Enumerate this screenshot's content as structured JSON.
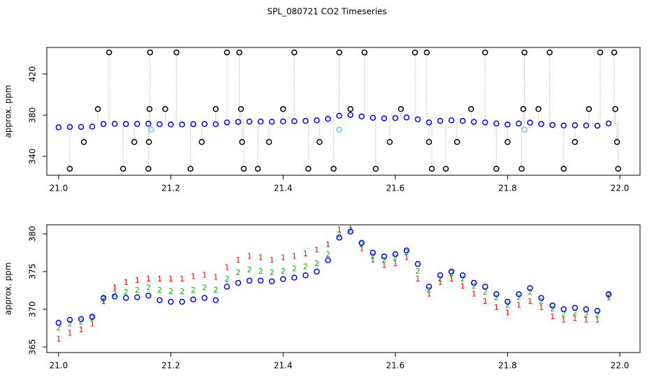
{
  "title": "SPL_080721  CO2 Timeseries",
  "chart_data": [
    {
      "type": "scatter",
      "ylabel": "approx. ppm",
      "xlim": [
        20.979,
        22.036
      ],
      "ylim": [
        321.7,
        445.8
      ],
      "xticks": [
        {
          "value": 21.0,
          "label": "21.0"
        },
        {
          "value": 21.2,
          "label": "21.2"
        },
        {
          "value": 21.4,
          "label": "21.4"
        },
        {
          "value": 21.6,
          "label": "21.6"
        },
        {
          "value": 21.8,
          "label": "21.8"
        },
        {
          "value": 22.0,
          "label": "22.0"
        }
      ],
      "yticks": [
        340,
        380,
        420
      ],
      "x": [
        21.0,
        21.02,
        21.04,
        21.06,
        21.08,
        21.1,
        21.12,
        21.14,
        21.16,
        21.18,
        21.2,
        21.22,
        21.24,
        21.26,
        21.28,
        21.3,
        21.32,
        21.34,
        21.36,
        21.38,
        21.4,
        21.42,
        21.44,
        21.46,
        21.48,
        21.5,
        21.52,
        21.54,
        21.56,
        21.58,
        21.6,
        21.62,
        21.64,
        21.66,
        21.68,
        21.7,
        21.72,
        21.74,
        21.76,
        21.78,
        21.8,
        21.82,
        21.84,
        21.86,
        21.88,
        21.9,
        21.92,
        21.94,
        21.96,
        21.98
      ],
      "series": [
        {
          "color": "#0000ff",
          "values": [
            368.2,
            368.6,
            368.7,
            369.0,
            371.5,
            371.7,
            371.5,
            371.6,
            371.8,
            371.2,
            371.0,
            371.0,
            371.3,
            371.5,
            371.2,
            373.0,
            373.5,
            373.8,
            373.8,
            373.7,
            374.0,
            374.2,
            374.5,
            375.0,
            376.5,
            379.5,
            380.3,
            378.8,
            377.5,
            377.0,
            377.3,
            377.8,
            376.0,
            373.0,
            374.5,
            375.0,
            374.5,
            373.5,
            373.0,
            372.0,
            371.0,
            372.0,
            372.8,
            371.5,
            370.5,
            370.0,
            370.2,
            370.0,
            369.8,
            372.0
          ]
        },
        {
          "color": "#000000",
          "x": [
            21.02,
            21.045,
            21.07,
            21.09,
            21.115,
            21.135,
            21.16,
            21.161,
            21.162,
            21.163,
            21.19,
            21.21,
            21.235,
            21.255,
            21.28,
            21.3,
            21.322,
            21.325,
            21.327,
            21.33,
            21.355,
            21.375,
            21.4,
            21.42,
            21.445,
            21.465,
            21.49,
            21.5,
            21.52,
            21.545,
            21.565,
            21.59,
            21.61,
            21.635,
            21.656,
            21.66,
            21.665,
            21.69,
            21.71,
            21.735,
            21.76,
            21.78,
            21.8,
            21.825,
            21.828,
            21.83,
            21.855,
            21.875,
            21.9,
            21.92,
            21.945,
            21.965,
            21.99,
            21.992,
            21.995,
            21.997
          ],
          "values": [
            328,
            354,
            386,
            441,
            328,
            354,
            328,
            354,
            386,
            441,
            386,
            441,
            328,
            354,
            386,
            441,
            441,
            386,
            354,
            328,
            328,
            354,
            386,
            441,
            328,
            354,
            328,
            441,
            386,
            441,
            328,
            354,
            386,
            441,
            441,
            354,
            328,
            328,
            354,
            386,
            441,
            328,
            354,
            328,
            386,
            441,
            386,
            441,
            328,
            354,
            386,
            441,
            441,
            386,
            354,
            328
          ]
        },
        {
          "color": "#5fd3e0",
          "x": [
            21.165,
            21.5,
            21.83
          ],
          "values": [
            366,
            366,
            366
          ]
        }
      ]
    },
    {
      "type": "scatter",
      "ylabel": "approx. ppm",
      "xlim": [
        20.979,
        22.036
      ],
      "ylim": [
        364.26,
        381.2
      ],
      "xticks": [
        {
          "value": 21.0,
          "label": "21.0"
        },
        {
          "value": 21.2,
          "label": "21.2"
        },
        {
          "value": 21.4,
          "label": "21.4"
        },
        {
          "value": 21.6,
          "label": "21.6"
        },
        {
          "value": 21.8,
          "label": "21.8"
        },
        {
          "value": 22.0,
          "label": "22.0"
        }
      ],
      "yticks": [
        365,
        370,
        375,
        380
      ],
      "x": [
        21.0,
        21.02,
        21.04,
        21.06,
        21.08,
        21.1,
        21.12,
        21.14,
        21.16,
        21.18,
        21.2,
        21.22,
        21.24,
        21.26,
        21.28,
        21.3,
        21.32,
        21.34,
        21.36,
        21.38,
        21.4,
        21.42,
        21.44,
        21.46,
        21.48,
        21.5,
        21.52,
        21.54,
        21.56,
        21.58,
        21.6,
        21.62,
        21.64,
        21.66,
        21.68,
        21.7,
        21.72,
        21.74,
        21.76,
        21.78,
        21.8,
        21.82,
        21.84,
        21.86,
        21.88,
        21.9,
        21.92,
        21.94,
        21.96,
        21.98
      ],
      "series": [
        {
          "color": "#ff0000",
          "marker": "1",
          "values": [
            366.0,
            366.8,
            367.2,
            368.0,
            371.0,
            372.8,
            373.5,
            373.8,
            374.0,
            374.0,
            374.0,
            374.0,
            374.3,
            374.5,
            374.2,
            375.5,
            376.5,
            377.0,
            376.8,
            376.5,
            376.8,
            377.0,
            377.3,
            377.8,
            378.5,
            380.5,
            380.8,
            378.0,
            376.5,
            375.8,
            376.0,
            376.8,
            374.0,
            372.0,
            373.5,
            374.0,
            373.0,
            372.0,
            371.0,
            370.2,
            369.5,
            370.5,
            371.0,
            370.2,
            369.0,
            368.5,
            368.7,
            368.5,
            368.5,
            371.5
          ]
        },
        {
          "color": "#00c000",
          "marker": "2",
          "values": [
            367.5,
            368.0,
            368.3,
            368.8,
            371.3,
            372.0,
            372.2,
            372.5,
            372.8,
            372.5,
            372.3,
            372.3,
            372.5,
            372.8,
            372.5,
            374.0,
            374.8,
            375.2,
            375.0,
            374.8,
            375.0,
            375.3,
            375.6,
            376.0,
            377.2,
            379.8,
            380.5,
            378.5,
            377.0,
            376.5,
            376.8,
            377.5,
            375.0,
            372.5,
            374.0,
            374.7,
            374.0,
            373.0,
            372.2,
            371.5,
            370.5,
            371.5,
            372.2,
            371.0,
            370.0,
            369.3,
            369.5,
            369.2,
            369.2,
            371.8
          ]
        },
        {
          "color": "#0000ff",
          "values": [
            368.2,
            368.6,
            368.7,
            369.0,
            371.5,
            371.7,
            371.5,
            371.6,
            371.8,
            371.2,
            371.0,
            371.0,
            371.3,
            371.5,
            371.2,
            373.0,
            373.5,
            373.8,
            373.8,
            373.7,
            374.0,
            374.2,
            374.5,
            375.0,
            376.5,
            379.5,
            380.3,
            378.8,
            377.5,
            377.0,
            377.3,
            377.8,
            376.0,
            373.0,
            374.5,
            375.0,
            374.5,
            373.5,
            373.0,
            372.0,
            371.0,
            372.0,
            372.8,
            371.5,
            370.5,
            370.0,
            370.2,
            370.0,
            369.8,
            372.0
          ]
        }
      ]
    }
  ]
}
